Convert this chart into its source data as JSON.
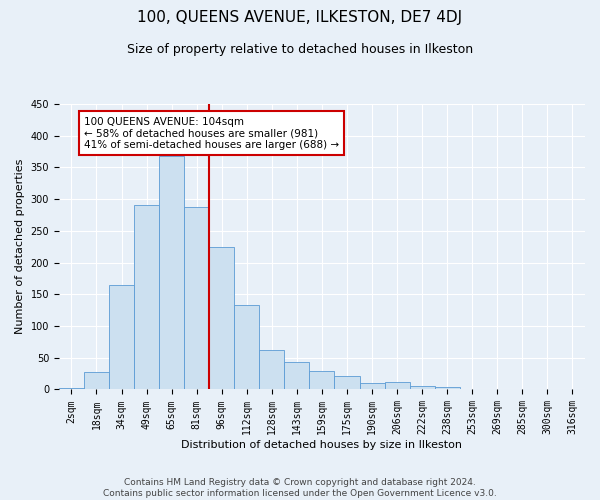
{
  "title": "100, QUEENS AVENUE, ILKESTON, DE7 4DJ",
  "subtitle": "Size of property relative to detached houses in Ilkeston",
  "xlabel": "Distribution of detached houses by size in Ilkeston",
  "ylabel": "Number of detached properties",
  "footer_line1": "Contains HM Land Registry data © Crown copyright and database right 2024.",
  "footer_line2": "Contains public sector information licensed under the Open Government Licence v3.0.",
  "bin_labels": [
    "2sqm",
    "18sqm",
    "34sqm",
    "49sqm",
    "65sqm",
    "81sqm",
    "96sqm",
    "112sqm",
    "128sqm",
    "143sqm",
    "159sqm",
    "175sqm",
    "190sqm",
    "206sqm",
    "222sqm",
    "238sqm",
    "253sqm",
    "269sqm",
    "285sqm",
    "300sqm",
    "316sqm"
  ],
  "bar_heights": [
    2,
    28,
    165,
    291,
    368,
    288,
    225,
    133,
    62,
    43,
    29,
    22,
    10,
    11,
    5,
    4,
    1,
    0,
    0,
    0,
    0
  ],
  "bar_color": "#cce0f0",
  "bar_edgecolor": "#5b9bd5",
  "marker_line_bin": 6,
  "marker_label": "100 QUEENS AVENUE: 104sqm",
  "annotation_line1": "← 58% of detached houses are smaller (981)",
  "annotation_line2": "41% of semi-detached houses are larger (688) →",
  "annotation_box_color": "#ffffff",
  "annotation_box_edgecolor": "#cc0000",
  "marker_line_color": "#cc0000",
  "ylim": [
    0,
    450
  ],
  "yticks": [
    0,
    50,
    100,
    150,
    200,
    250,
    300,
    350,
    400,
    450
  ],
  "background_color": "#e8f0f8",
  "grid_color": "#ffffff",
  "title_fontsize": 11,
  "subtitle_fontsize": 9,
  "axis_label_fontsize": 8,
  "tick_fontsize": 7,
  "annotation_fontsize": 7.5,
  "footer_fontsize": 6.5
}
